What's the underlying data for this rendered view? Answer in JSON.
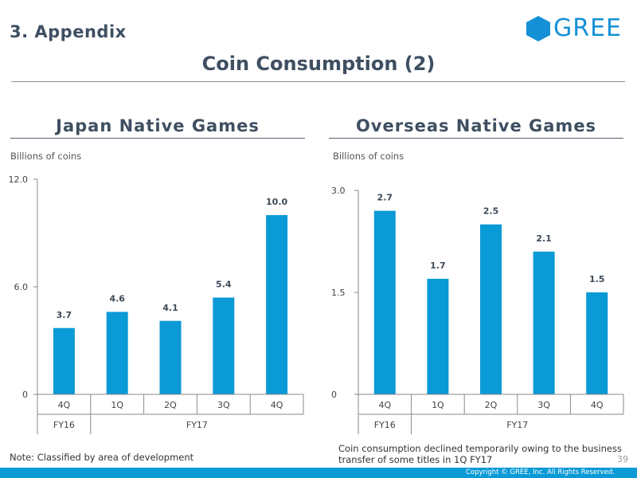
{
  "header": {
    "section": "3. Appendix",
    "title": "Coin Consumption (2)",
    "logo_text": "GREE"
  },
  "colors": {
    "bar": "#0a9ad6",
    "brand": "#1590d7"
  },
  "chart_data": [
    {
      "type": "bar",
      "title": "Japan Native Games",
      "ylabel": "Billions of coins",
      "categories": [
        "4Q",
        "1Q",
        "2Q",
        "3Q",
        "4Q"
      ],
      "values": [
        3.7,
        4.6,
        4.1,
        5.4,
        10.0
      ],
      "value_labels": [
        "3.7",
        "4.6",
        "4.1",
        "5.4",
        "10.0"
      ],
      "fiscal_groups": [
        {
          "label": "FY16",
          "span": 1
        },
        {
          "label": "FY17",
          "span": 4
        }
      ],
      "yticks": [
        {
          "value": 0,
          "label": "0"
        },
        {
          "value": 6,
          "label": "6.0"
        },
        {
          "value": 12,
          "label": "12.0"
        }
      ],
      "ylim": [
        0,
        12
      ]
    },
    {
      "type": "bar",
      "title": "Overseas Native Games",
      "ylabel": "Billions of coins",
      "categories": [
        "4Q",
        "1Q",
        "2Q",
        "3Q",
        "4Q"
      ],
      "values": [
        2.7,
        1.7,
        2.5,
        2.1,
        1.5
      ],
      "value_labels": [
        "2.7",
        "1.7",
        "2.5",
        "2.1",
        "1.5"
      ],
      "fiscal_groups": [
        {
          "label": "FY16",
          "span": 1
        },
        {
          "label": "FY17",
          "span": 4
        }
      ],
      "yticks": [
        {
          "value": 0,
          "label": "0"
        },
        {
          "value": 1.5,
          "label": "1.5"
        },
        {
          "value": 3,
          "label": "3.0"
        }
      ],
      "ylim": [
        0,
        3
      ]
    }
  ],
  "notes": {
    "left": "Note: Classified by area of development",
    "right": "Coin consumption declined temporarily owing to the business transfer of some titles in 1Q FY17"
  },
  "footer": {
    "page": "39",
    "copyright": "Copyright © GREE, Inc. All Rights Reserved."
  }
}
